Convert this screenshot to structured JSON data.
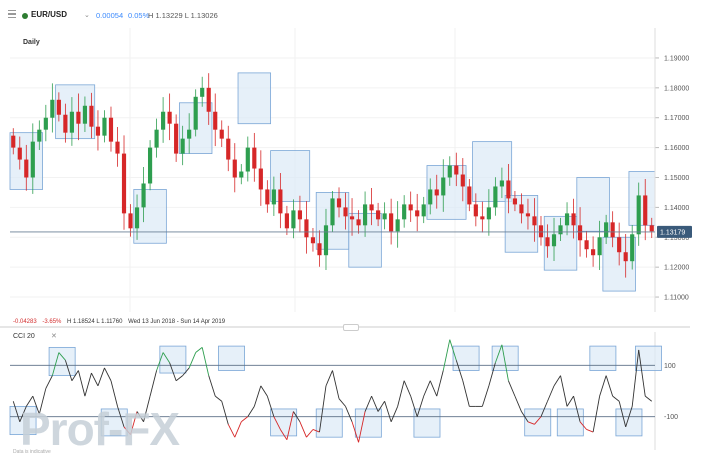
{
  "header": {
    "symbol": "EUR/USD",
    "change": "0.00054",
    "change_pct": "0.05%",
    "high_low": "H 1.13229  L 1.13026"
  },
  "period": "Daily",
  "ohlc_bar": {
    "change": "-0.04283",
    "change_pct": "-3.65%",
    "high_low": "H 1.18524  L 1.11760",
    "range": "Wed 13 Jun 2018 - Sun 14 Apr 2019"
  },
  "indicator": {
    "label": "CCI  20",
    "close": "✕"
  },
  "watermark": "Prof-FX",
  "footnote": "Data is indicative",
  "colors": {
    "up": "#2e9e4f",
    "down": "#d62728",
    "box_fill": "#dbe9f7",
    "box_stroke": "#7aa6d6",
    "cci_line": "#333333",
    "current_price_label": "#3a5a7a"
  },
  "chart_data": [
    {
      "type": "candlestick",
      "period": "Daily",
      "ylim": [
        1.105,
        1.195
      ],
      "y_ticks": [
        "1.19000",
        "1.18000",
        "1.17000",
        "1.16000",
        "1.15000",
        "1.14000",
        "1.13000",
        "1.12000",
        "1.11000"
      ],
      "current_price": "1.13179",
      "close_path": [
        1.16,
        1.156,
        1.15,
        1.162,
        1.166,
        1.17,
        1.176,
        1.171,
        1.165,
        1.172,
        1.168,
        1.174,
        1.167,
        1.164,
        1.17,
        1.162,
        1.158,
        1.138,
        1.133,
        1.14,
        1.148,
        1.16,
        1.166,
        1.172,
        1.168,
        1.158,
        1.163,
        1.166,
        1.177,
        1.18,
        1.172,
        1.166,
        1.163,
        1.156,
        1.15,
        1.152,
        1.16,
        1.153,
        1.146,
        1.141,
        1.146,
        1.138,
        1.133,
        1.139,
        1.136,
        1.13,
        1.128,
        1.124,
        1.134,
        1.143,
        1.14,
        1.137,
        1.136,
        1.134,
        1.141,
        1.139,
        1.136,
        1.138,
        1.132,
        1.136,
        1.141,
        1.139,
        1.137,
        1.141,
        1.146,
        1.144,
        1.15,
        1.154,
        1.151,
        1.147,
        1.141,
        1.137,
        1.136,
        1.14,
        1.147,
        1.149,
        1.143,
        1.141,
        1.138,
        1.137,
        1.134,
        1.13,
        1.127,
        1.131,
        1.134,
        1.138,
        1.134,
        1.129,
        1.126,
        1.124,
        1.13,
        1.135,
        1.13,
        1.125,
        1.122,
        1.131,
        1.144,
        1.134,
        1.132
      ],
      "highlight_boxes": [
        {
          "x": [
            0,
            4
          ],
          "y": [
            1.146,
            1.165
          ]
        },
        {
          "x": [
            7,
            12
          ],
          "y": [
            1.163,
            1.181
          ]
        },
        {
          "x": [
            19,
            23
          ],
          "y": [
            1.128,
            1.146
          ]
        },
        {
          "x": [
            26,
            30
          ],
          "y": [
            1.158,
            1.175
          ]
        },
        {
          "x": [
            35,
            39
          ],
          "y": [
            1.168,
            1.185
          ]
        },
        {
          "x": [
            40,
            45
          ],
          "y": [
            1.142,
            1.159
          ]
        },
        {
          "x": [
            47,
            51
          ],
          "y": [
            1.126,
            1.145
          ]
        },
        {
          "x": [
            52,
            56
          ],
          "y": [
            1.12,
            1.138
          ]
        },
        {
          "x": [
            64,
            69
          ],
          "y": [
            1.136,
            1.154
          ]
        },
        {
          "x": [
            71,
            76
          ],
          "y": [
            1.142,
            1.162
          ]
        },
        {
          "x": [
            76,
            80
          ],
          "y": [
            1.125,
            1.144
          ]
        },
        {
          "x": [
            82,
            86
          ],
          "y": [
            1.119,
            1.137
          ]
        },
        {
          "x": [
            87,
            91
          ],
          "y": [
            1.132,
            1.15
          ]
        },
        {
          "x": [
            91,
            95
          ],
          "y": [
            1.112,
            1.13
          ]
        },
        {
          "x": [
            95,
            98
          ],
          "y": [
            1.134,
            1.152
          ]
        }
      ]
    },
    {
      "type": "line",
      "name": "CCI 20",
      "ylim": [
        -230,
        230
      ],
      "levels": [
        100,
        -100
      ],
      "level_labels": [
        "100",
        "-100"
      ],
      "values": [
        -40,
        -120,
        -60,
        -20,
        -90,
        10,
        60,
        150,
        120,
        40,
        80,
        -20,
        70,
        20,
        90,
        40,
        -60,
        -140,
        -170,
        -80,
        -120,
        -20,
        80,
        150,
        110,
        40,
        60,
        90,
        150,
        170,
        60,
        -20,
        -40,
        -130,
        -180,
        -120,
        -100,
        -60,
        20,
        -20,
        -100,
        -150,
        -190,
        -80,
        -120,
        -180,
        -150,
        -160,
        20,
        80,
        -30,
        -60,
        -120,
        -200,
        -80,
        -20,
        -80,
        -40,
        -120,
        -60,
        40,
        -20,
        -100,
        -20,
        40,
        -20,
        80,
        200,
        120,
        40,
        -60,
        -60,
        -60,
        20,
        110,
        180,
        40,
        -20,
        -80,
        -120,
        -130,
        -100,
        -40,
        20,
        60,
        -60,
        -20,
        -120,
        -150,
        -160,
        -20,
        60,
        -20,
        -40,
        -140,
        -60,
        160,
        -20,
        -40
      ],
      "highlight_boxes": [
        {
          "x": [
            0,
            3
          ],
          "y": [
            -170,
            -60
          ]
        },
        {
          "x": [
            6,
            9
          ],
          "y": [
            60,
            170
          ]
        },
        {
          "x": [
            14,
            17
          ],
          "y": [
            -175,
            -70
          ]
        },
        {
          "x": [
            23,
            26
          ],
          "y": [
            70,
            175
          ]
        },
        {
          "x": [
            32,
            35
          ],
          "y": [
            80,
            175
          ]
        },
        {
          "x": [
            40,
            43
          ],
          "y": [
            -175,
            -70
          ]
        },
        {
          "x": [
            47,
            50
          ],
          "y": [
            -180,
            -70
          ]
        },
        {
          "x": [
            53,
            56
          ],
          "y": [
            -180,
            -70
          ]
        },
        {
          "x": [
            62,
            65
          ],
          "y": [
            -180,
            -70
          ]
        },
        {
          "x": [
            68,
            71
          ],
          "y": [
            80,
            175
          ]
        },
        {
          "x": [
            74,
            77
          ],
          "y": [
            80,
            175
          ]
        },
        {
          "x": [
            79,
            82
          ],
          "y": [
            -175,
            -70
          ]
        },
        {
          "x": [
            84,
            87
          ],
          "y": [
            -175,
            -70
          ]
        },
        {
          "x": [
            89,
            92
          ],
          "y": [
            80,
            175
          ]
        },
        {
          "x": [
            93,
            96
          ],
          "y": [
            -175,
            -70
          ]
        },
        {
          "x": [
            96,
            99
          ],
          "y": [
            80,
            175
          ]
        }
      ]
    }
  ]
}
